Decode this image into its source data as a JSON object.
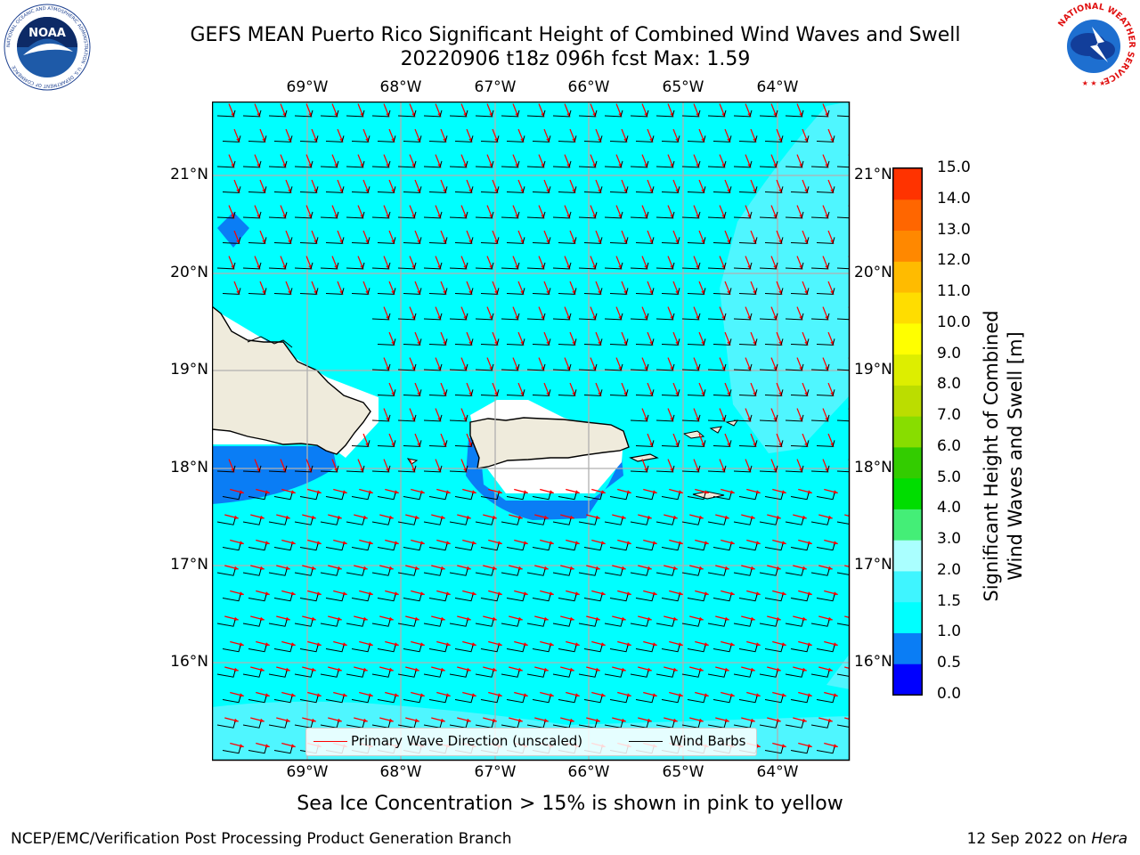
{
  "title": {
    "line1": "GEFS MEAN Puerto Rico Significant Height of Combined Wind Waves and Swell",
    "line2": "20220906 t18z 096h fcst   Max: 1.59"
  },
  "map": {
    "lon_labels": [
      "69°W",
      "68°W",
      "67°W",
      "66°W",
      "65°W",
      "64°W"
    ],
    "lat_labels": [
      "21°N",
      "20°N",
      "19°N",
      "18°N",
      "17°N",
      "16°N"
    ],
    "land_color": "#efebdc",
    "ocean_color": "#00ffff",
    "grid_color": "#b0b0b0"
  },
  "legend": {
    "wave_dir": "Primary Wave Direction (unscaled)",
    "wind_barbs": "Wind Barbs",
    "wave_color": "#ff0000",
    "barb_color": "#000000"
  },
  "colorbar": {
    "label_line1": "Significant Height of Combined",
    "label_line2": "Wind Waves and Swell [m]",
    "ticks": [
      "0.0",
      "0.5",
      "1.0",
      "1.5",
      "2.0",
      "3.0",
      "4.0",
      "5.0",
      "6.0",
      "7.0",
      "8.0",
      "9.0",
      "10.0",
      "11.0",
      "12.0",
      "13.0",
      "14.0",
      "15.0"
    ],
    "colors": [
      "#0000ff",
      "#0a7df5",
      "#00ffff",
      "#3ff5ff",
      "#aaffff",
      "#44ee77",
      "#00dd00",
      "#33cc00",
      "#88dd00",
      "#bbdd00",
      "#ddee00",
      "#ffff00",
      "#ffdd00",
      "#ffbb00",
      "#ff8800",
      "#ff6600",
      "#ff3300",
      "#ff0000"
    ]
  },
  "ice_note": "Sea Ice Concentration > 15% is shown in pink to yellow",
  "footer": {
    "left": "NCEP/EMC/Verification Post Processing Product Generation Branch",
    "date": "12 Sep 2022 on ",
    "host": "Hera"
  },
  "logos": {
    "noaa_text": "NOAA",
    "noaa_ring": "NATIONAL OCEANIC AND ATMOSPHERIC ADMINISTRATION · U.S. DEPARTMENT OF COMMERCE",
    "nws_ring": "NATIONAL WEATHER SERVICE"
  }
}
